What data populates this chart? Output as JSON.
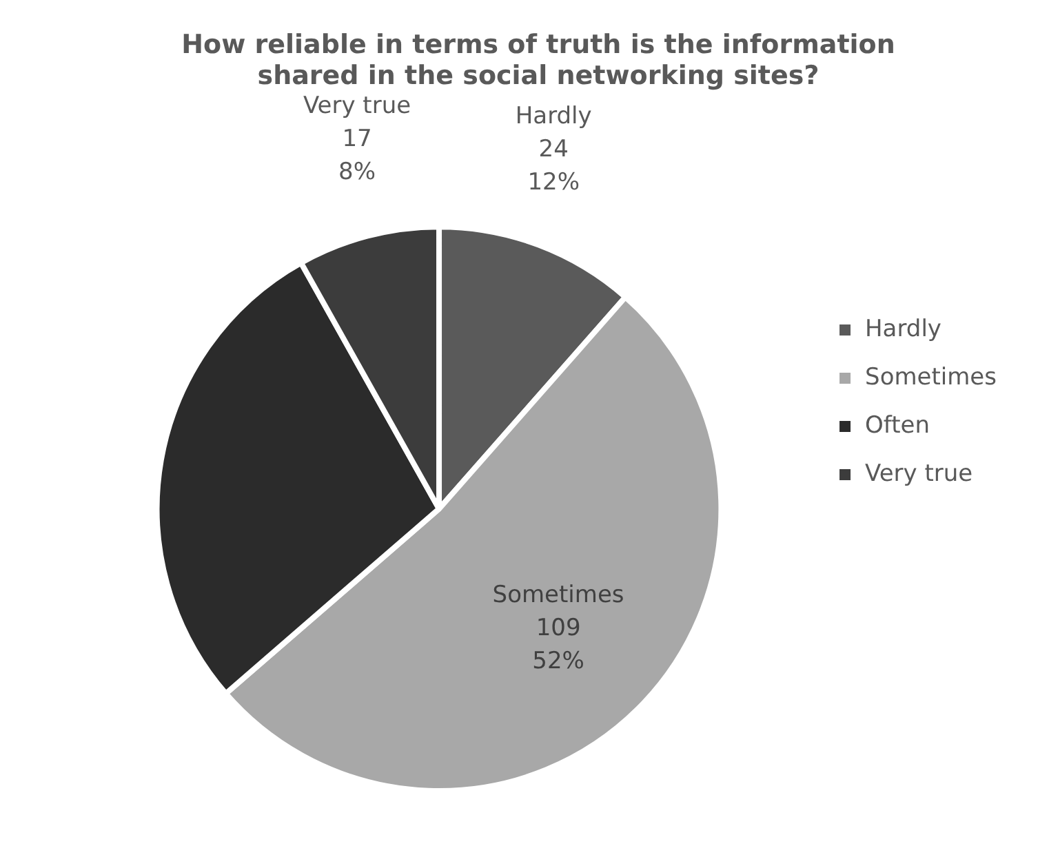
{
  "chart_data": {
    "type": "pie",
    "title": "How reliable in terms of truth is the information\nshared in the social networking sites?",
    "categories": [
      "Hardly",
      "Sometimes",
      "Often",
      "Very true"
    ],
    "values": [
      24,
      109,
      59,
      17
    ],
    "colors": [
      "#5a5a5a",
      "#a8a8a8",
      "#2b2b2b",
      "#3c3c3c"
    ],
    "value_labels": [
      "Hardly\n24\n12%",
      "Sometimes\n109\n52%",
      null,
      "Very true\n17\n8%"
    ],
    "legend": "right"
  }
}
